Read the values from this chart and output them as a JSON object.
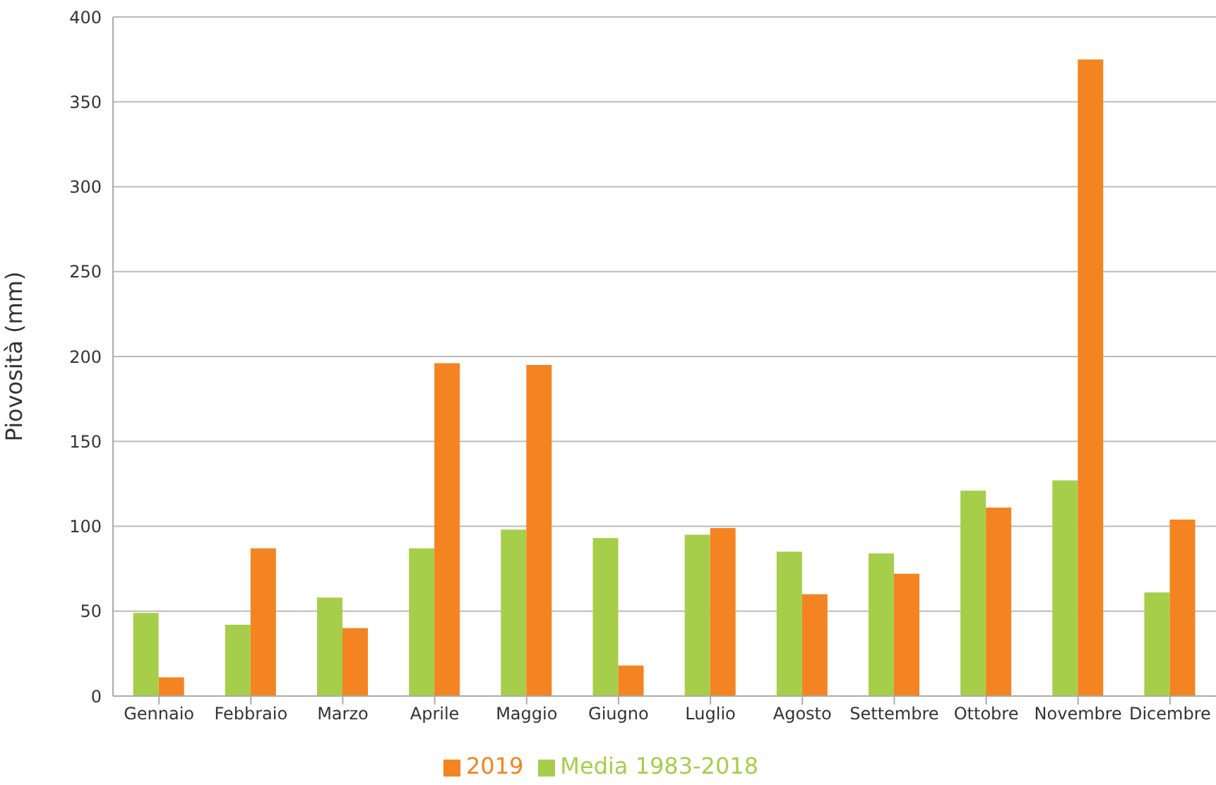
{
  "chart_data": {
    "type": "bar",
    "ylabel": "Piovosità (mm)",
    "categories": [
      "Gennaio",
      "Febbraio",
      "Marzo",
      "Aprile",
      "Maggio",
      "Giugno",
      "Luglio",
      "Agosto",
      "Settembre",
      "Ottobre",
      "Novembre",
      "Dicembre"
    ],
    "series": [
      {
        "name": "Media 1983-2018",
        "color": "#a6ce4a",
        "values": [
          49,
          42,
          58,
          87,
          98,
          93,
          95,
          85,
          84,
          121,
          127,
          61
        ]
      },
      {
        "name": "2019",
        "color": "#f38421",
        "values": [
          11,
          87,
          40,
          196,
          195,
          18,
          99,
          60,
          72,
          111,
          375,
          104
        ]
      }
    ],
    "ylim": [
      0,
      400
    ],
    "yticks": [
      0,
      50,
      100,
      150,
      200,
      250,
      300,
      350,
      400
    ],
    "grid": "y",
    "legend": "bottom"
  }
}
